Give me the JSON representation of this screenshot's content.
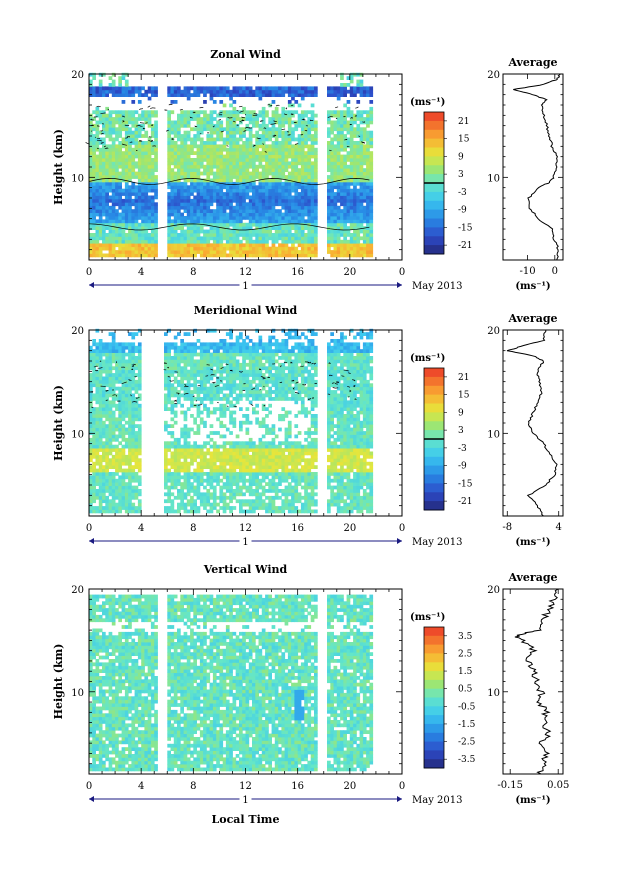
{
  "figure": {
    "date_label": "May 2013",
    "time_axis_label": "Local Time",
    "day_label": "1",
    "time_ticks": [
      "0",
      "4",
      "8",
      "12",
      "16",
      "20",
      "0"
    ],
    "colors": {
      "background": "#ffffff",
      "axes": "#000000",
      "day_bar": "#1a1a80"
    }
  },
  "chart_data": [
    {
      "type": "heatmap",
      "title": "Zonal Wind",
      "ylabel": "Height (km)",
      "y_ticks": [
        "20",
        "10"
      ],
      "x_range_hours": [
        0,
        24
      ],
      "y_range_km": [
        2,
        20
      ],
      "unit": "(ms⁻¹)",
      "colorbar": {
        "labels": [
          "21",
          "15",
          "9",
          "3",
          "-3",
          "-9",
          "-15",
          "-21"
        ],
        "range": [
          -24,
          24
        ],
        "highlight": 0
      },
      "structure": {
        "jet_height_km": [
          6,
          9
        ],
        "jet_speed": -15,
        "upper_gap_height_km": 17.5
      },
      "gaps_hours": [
        5.2,
        5.8,
        17.5,
        18.2
      ],
      "average": {
        "title": "Average",
        "xlabel": "(ms⁻¹)",
        "x_ticks": [
          "-10",
          "0"
        ],
        "x_tick_values": [
          -10,
          0
        ],
        "xlim": [
          -19,
          3
        ],
        "y_ticks": [
          "20",
          "10"
        ],
        "profile": [
          [
            2,
            1.0
          ],
          [
            3,
            1.5
          ],
          [
            4,
            -0.5
          ],
          [
            5,
            -1.0
          ],
          [
            6,
            -6.0
          ],
          [
            7,
            -9.0
          ],
          [
            8,
            -9.5
          ],
          [
            9,
            -6.0
          ],
          [
            9.5,
            -2.0
          ],
          [
            10,
            -0.5
          ],
          [
            11,
            0.5
          ],
          [
            12,
            1.0
          ],
          [
            13,
            -1.0
          ],
          [
            14,
            -2.0
          ],
          [
            15,
            -3.0
          ],
          [
            16,
            -4.0
          ],
          [
            17,
            -5.0
          ],
          [
            17.5,
            -3.0
          ],
          [
            18,
            -8.0
          ],
          [
            18.5,
            -15.0
          ],
          [
            19,
            -4.0
          ],
          [
            19.5,
            1.0
          ],
          [
            20,
            2.0
          ]
        ]
      }
    },
    {
      "type": "heatmap",
      "title": "Meridional Wind",
      "ylabel": "Height (km)",
      "y_ticks": [
        "20",
        "10"
      ],
      "x_range_hours": [
        0,
        24
      ],
      "y_range_km": [
        2,
        20
      ],
      "unit": "(ms⁻¹)",
      "colorbar": {
        "labels": [
          "21",
          "15",
          "9",
          "3",
          "-3",
          "-9",
          "-15",
          "-21"
        ],
        "range": [
          -24,
          24
        ],
        "highlight": 0
      },
      "structure": {
        "band_height_km": [
          6,
          8
        ],
        "band_speed": 4
      },
      "gaps_hours": [
        3.8,
        5.6,
        17.5,
        18.2
      ],
      "average": {
        "title": "Average",
        "xlabel": "(ms⁻¹)",
        "x_ticks": [
          "-8",
          "4"
        ],
        "x_tick_values": [
          -8,
          4
        ],
        "xlim": [
          -9,
          5
        ],
        "y_ticks": [
          "20",
          "10"
        ],
        "profile": [
          [
            2,
            0.5
          ],
          [
            3,
            -1.0
          ],
          [
            4,
            -3.0
          ],
          [
            5,
            1.0
          ],
          [
            6,
            3.0
          ],
          [
            7,
            3.5
          ],
          [
            8,
            2.0
          ],
          [
            9,
            0.5
          ],
          [
            10,
            -2.0
          ],
          [
            11,
            -3.0
          ],
          [
            12,
            -2.0
          ],
          [
            13,
            -1.0
          ],
          [
            14,
            0.0
          ],
          [
            15,
            -0.5
          ],
          [
            16,
            -1.0
          ],
          [
            17,
            0.5
          ],
          [
            17.5,
            -2.0
          ],
          [
            18,
            -8.0
          ],
          [
            18.5,
            -4.0
          ],
          [
            19,
            0.5
          ],
          [
            20,
            1.0
          ]
        ]
      }
    },
    {
      "type": "heatmap",
      "title": "Vertical Wind",
      "ylabel": "Height (km)",
      "y_ticks": [
        "20",
        "10"
      ],
      "x_range_hours": [
        0,
        24
      ],
      "y_range_km": [
        2,
        20
      ],
      "unit": "(ms⁻¹)",
      "colorbar": {
        "labels": [
          "3.5",
          "2.5",
          "1.5",
          "0.5",
          "-0.5",
          "-1.5",
          "-2.5",
          "-3.5"
        ],
        "range": [
          -4,
          4
        ],
        "highlight": null
      },
      "structure": {
        "typical_value": 0
      },
      "gaps_hours": [
        5.2,
        5.8,
        17.5,
        18.2
      ],
      "average": {
        "title": "Average",
        "xlabel": "(ms⁻¹)",
        "x_ticks": [
          "-0.15",
          "0.05"
        ],
        "x_tick_values": [
          -0.15,
          0.05
        ],
        "xlim": [
          -0.18,
          0.07
        ],
        "y_ticks": [
          "20",
          "10"
        ],
        "profile": [
          [
            2,
            -0.03
          ],
          [
            3,
            -0.01
          ],
          [
            4,
            0.0
          ],
          [
            5,
            -0.02
          ],
          [
            6,
            0.01
          ],
          [
            7,
            -0.01
          ],
          [
            8,
            0.0
          ],
          [
            9,
            -0.03
          ],
          [
            10,
            -0.02
          ],
          [
            11,
            -0.04
          ],
          [
            12,
            -0.05
          ],
          [
            13,
            -0.08
          ],
          [
            14,
            -0.05
          ],
          [
            15,
            -0.1
          ],
          [
            15.5,
            -0.13
          ],
          [
            16,
            -0.02
          ],
          [
            17,
            -0.01
          ],
          [
            18,
            0.01
          ],
          [
            19,
            0.03
          ],
          [
            20,
            0.05
          ]
        ]
      }
    }
  ]
}
